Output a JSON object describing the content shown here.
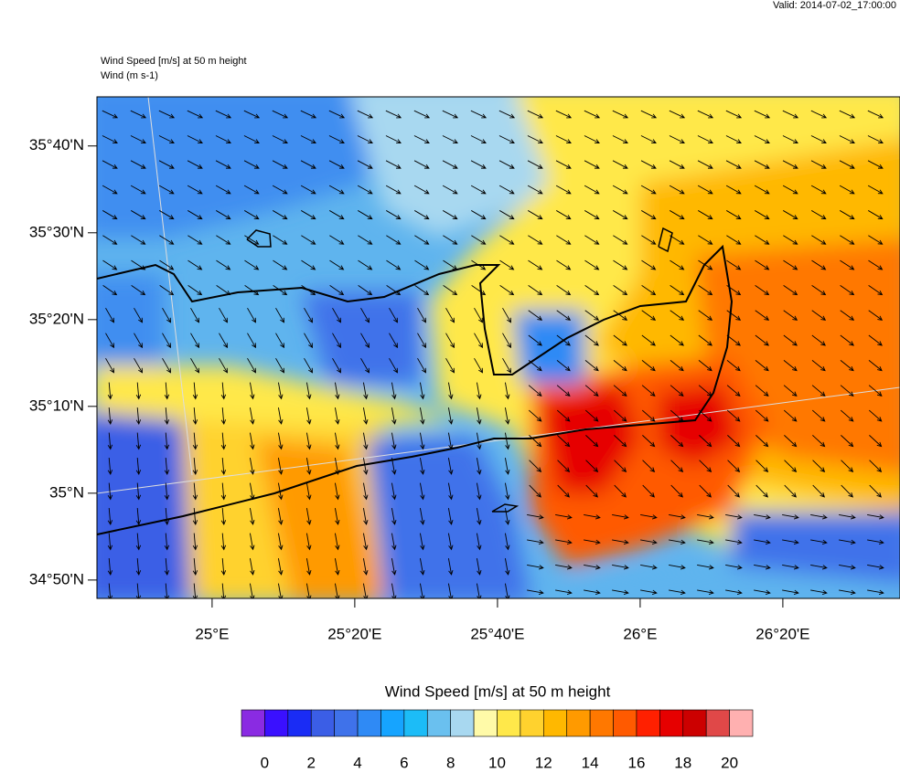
{
  "map": {
    "valid": "Valid: 2014-07-02_17:00:00",
    "title": "Wind Speed [m/s] at 50 m height",
    "subtitle": "Wind   (m s-1)",
    "xlim": [
      24.731,
      26.607
    ],
    "ylim": [
      34.798,
      35.761
    ],
    "lat_ticks": [
      {
        "value": 35.6667,
        "label": "35°40'N"
      },
      {
        "value": 35.5,
        "label": "35°30'N"
      },
      {
        "value": 35.3333,
        "label": "35°20'N"
      },
      {
        "value": 35.1667,
        "label": "35°10'N"
      },
      {
        "value": 35,
        "label": "35°N"
      },
      {
        "value": 34.8333,
        "label": "34°50'N"
      }
    ],
    "lon_ticks": [
      {
        "value": 25,
        "label": "25°E"
      },
      {
        "value": 25.3333,
        "label": "25°20'E"
      },
      {
        "value": 25.6667,
        "label": "25°40'E"
      },
      {
        "value": 26,
        "label": "26°E"
      },
      {
        "value": 26.3333,
        "label": "26°20'E"
      }
    ],
    "colorbar": {
      "title": "Wind Speed [m/s] at 50 m height",
      "colors": [
        "#8a2be2",
        "#3a10ff",
        "#1a2cf5",
        "#3b5ee6",
        "#3f72ea",
        "#2f8af5",
        "#16a4ff",
        "#1cbcf7",
        "#6ac0ef",
        "#a8d8f0",
        "#fffaa8",
        "#ffe84a",
        "#ffd22e",
        "#ffb800",
        "#ff9a00",
        "#ff7800",
        "#ff5a00",
        "#ff2000",
        "#e60000",
        "#cc0000",
        "#e04848",
        "#ffb0b0"
      ],
      "ticks": [
        0,
        2,
        4,
        6,
        8,
        10,
        12,
        14,
        16,
        18,
        20
      ]
    }
  }
}
